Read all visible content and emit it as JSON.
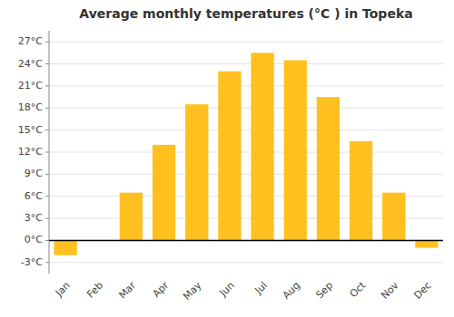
{
  "chart_data": {
    "type": "bar",
    "title": "Average monthly temperatures (°C ) in Topeka",
    "categories": [
      "Jan",
      "Feb",
      "Mar",
      "Apr",
      "May",
      "Jun",
      "Jul",
      "Aug",
      "Sep",
      "Oct",
      "Nov",
      "Dec"
    ],
    "values": [
      -2.0,
      0.0,
      6.5,
      13.0,
      18.5,
      23.0,
      25.5,
      24.5,
      19.5,
      13.5,
      6.5,
      -1.0
    ],
    "color": "#FFC020",
    "ylim": [
      -4.5,
      28.5
    ],
    "yticks": [
      {
        "value": -3,
        "label": "-3°C"
      },
      {
        "value": 0,
        "label": "0°C"
      },
      {
        "value": 3,
        "label": "3°C"
      },
      {
        "value": 6,
        "label": "6°C"
      },
      {
        "value": 9,
        "label": "9°C"
      },
      {
        "value": 12,
        "label": "12°C"
      },
      {
        "value": 15,
        "label": "15°C"
      },
      {
        "value": 18,
        "label": "18°C"
      },
      {
        "value": 21,
        "label": "21°C"
      },
      {
        "value": 24,
        "label": "24°C"
      },
      {
        "value": 27,
        "label": "27°C"
      }
    ],
    "grid": true
  }
}
